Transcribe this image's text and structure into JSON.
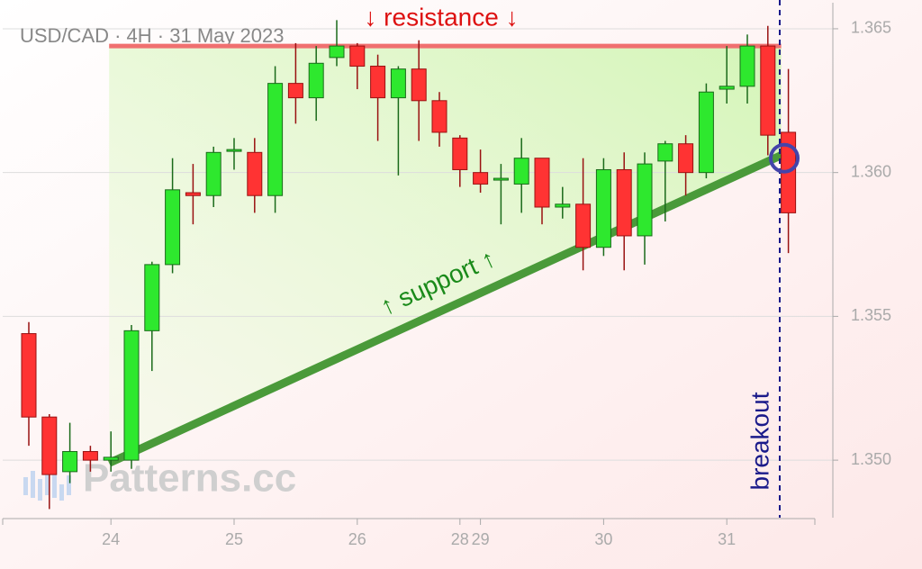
{
  "chart_data": {
    "type": "candlestick",
    "title": "USD/CAD · 4H · 31 May 2023",
    "watermark": "Patterns.cc",
    "categories": [
      null,
      null,
      null,
      null,
      "24",
      null,
      null,
      null,
      null,
      null,
      "25",
      null,
      null,
      null,
      null,
      null,
      "26",
      null,
      null,
      null,
      null,
      "28",
      "29",
      null,
      null,
      null,
      null,
      null,
      "30",
      null,
      null,
      null,
      null,
      null,
      "31",
      null,
      null,
      null
    ],
    "open": [
      1.3544,
      1.3515,
      1.3496,
      1.3503,
      1.35,
      1.35,
      1.3545,
      1.3568,
      1.3593,
      1.3592,
      1.3608,
      1.3607,
      1.3592,
      1.3631,
      1.3626,
      1.364,
      1.3644,
      1.3637,
      1.3626,
      1.3636,
      1.3625,
      1.3612,
      1.36,
      1.3598,
      1.3596,
      1.3605,
      1.3588,
      1.3589,
      1.3574,
      1.3601,
      1.3578,
      1.3604,
      1.361,
      1.36,
      1.3629,
      1.363,
      1.3644,
      1.3614
    ],
    "high": [
      1.3548,
      1.3516,
      1.3513,
      1.3505,
      1.351,
      1.3547,
      1.3569,
      1.3605,
      1.3603,
      1.3609,
      1.3612,
      1.3612,
      1.3637,
      1.3645,
      1.3644,
      1.3653,
      1.3645,
      1.3641,
      1.3637,
      1.3646,
      1.3628,
      1.3613,
      1.3608,
      1.3603,
      1.3612,
      1.3605,
      1.3595,
      1.3605,
      1.3605,
      1.3607,
      1.3607,
      1.3611,
      1.3613,
      1.3631,
      1.3644,
      1.3648,
      1.3651,
      1.3636
    ],
    "low": [
      1.3505,
      1.3483,
      1.3492,
      1.3496,
      1.3496,
      1.3497,
      1.3531,
      1.3565,
      1.3582,
      1.3588,
      1.3601,
      1.3586,
      1.3586,
      1.3617,
      1.3618,
      1.3637,
      1.3629,
      1.3611,
      1.3599,
      1.3611,
      1.3609,
      1.3595,
      1.3593,
      1.3582,
      1.3586,
      1.3582,
      1.3584,
      1.3566,
      1.3571,
      1.3566,
      1.3568,
      1.3583,
      1.3592,
      1.3598,
      1.3624,
      1.3624,
      1.3606,
      1.3572
    ],
    "close": [
      1.3515,
      1.3495,
      1.3503,
      1.35,
      1.3501,
      1.3545,
      1.3568,
      1.3594,
      1.3592,
      1.3607,
      1.3608,
      1.3592,
      1.3631,
      1.3626,
      1.3638,
      1.3644,
      1.3637,
      1.3626,
      1.3636,
      1.3625,
      1.3614,
      1.3601,
      1.3596,
      1.3598,
      1.3605,
      1.3588,
      1.3589,
      1.3574,
      1.3601,
      1.3578,
      1.3603,
      1.361,
      1.36,
      1.3628,
      1.363,
      1.3644,
      1.3613,
      1.3586
    ],
    "up_color": "#2ee82e",
    "down_color": "#ff3333",
    "ylim": [
      1.348,
      1.366
    ],
    "yticks": [
      {
        "value": 1.35,
        "label": "1.350"
      },
      {
        "value": 1.355,
        "label": "1.355"
      },
      {
        "value": 1.36,
        "label": "1.360"
      },
      {
        "value": 1.365,
        "label": "1.365"
      }
    ],
    "grid": true,
    "resistance": {
      "label": "↓ resistance ↓",
      "value": 1.3644,
      "color": "#f07070"
    },
    "support": {
      "label": "↑ support ↑",
      "start": 1.3499,
      "end": 1.3606,
      "color": "#4a9a3a"
    },
    "breakout": {
      "label": "breakout",
      "value": 1.3605,
      "color": "#1a1a8a"
    }
  }
}
